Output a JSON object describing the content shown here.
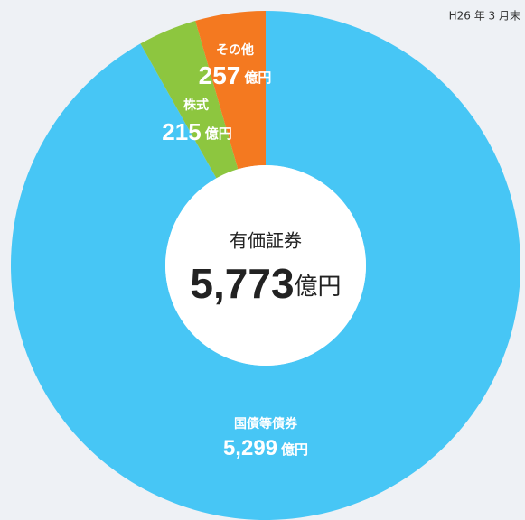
{
  "chart_data": {
    "type": "donut",
    "note": "H26 年 3 月末",
    "center_title": "有価証券",
    "total_label": "5,773",
    "unit": "億円",
    "categories": [
      "国債等債券",
      "株式",
      "その他"
    ],
    "values": [
      5299,
      215,
      257
    ],
    "value_labels": [
      "5,299",
      "215",
      "257"
    ],
    "colors": [
      "#47c6f5",
      "#8dc63f",
      "#f47920"
    ]
  }
}
